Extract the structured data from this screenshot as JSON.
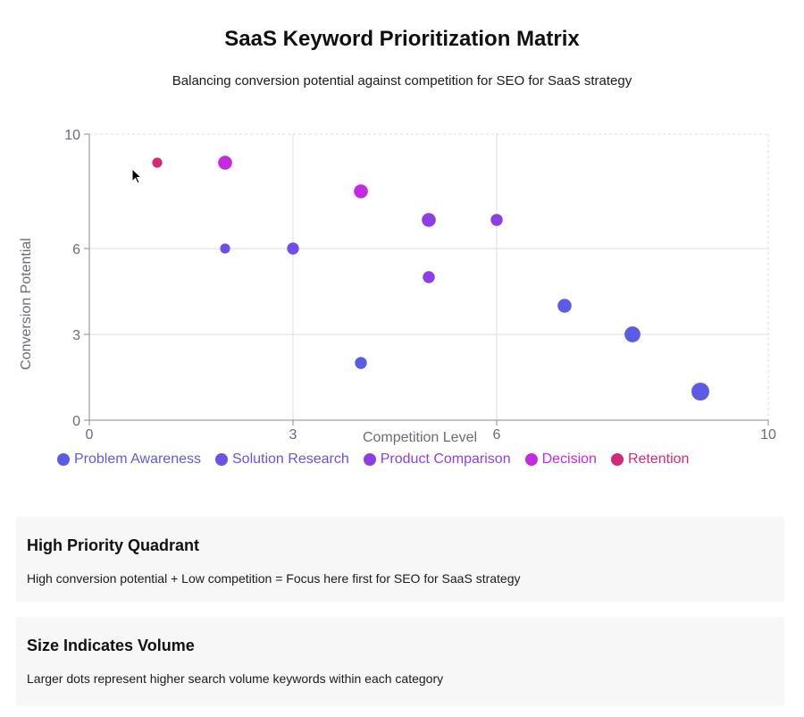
{
  "title": "SaaS Keyword Prioritization Matrix",
  "subtitle": "Balancing conversion potential against competition for SEO for SaaS strategy",
  "chart_data": {
    "type": "scatter",
    "xlabel": "Competition Level",
    "ylabel": "Conversion Potential",
    "xlim": [
      0,
      10
    ],
    "ylim": [
      0,
      10
    ],
    "x_ticks": [
      0,
      3,
      6,
      10
    ],
    "y_ticks": [
      0,
      3,
      6,
      10
    ],
    "grid": true,
    "legend_position": "bottom",
    "series": [
      {
        "name": "Problem Awareness",
        "color": "#5b5ce6",
        "points": [
          {
            "x": 4,
            "y": 2,
            "volume": 2
          },
          {
            "x": 7,
            "y": 4,
            "volume": 3
          },
          {
            "x": 8,
            "y": 3,
            "volume": 4
          },
          {
            "x": 9,
            "y": 1,
            "volume": 5
          }
        ]
      },
      {
        "name": "Solution Research",
        "color": "#6e4fe8",
        "points": [
          {
            "x": 2,
            "y": 6,
            "volume": 1
          },
          {
            "x": 3,
            "y": 6,
            "volume": 2
          }
        ]
      },
      {
        "name": "Product Comparison",
        "color": "#8f3ee6",
        "points": [
          {
            "x": 5,
            "y": 7,
            "volume": 3
          },
          {
            "x": 5,
            "y": 5,
            "volume": 2
          },
          {
            "x": 6,
            "y": 7,
            "volume": 2
          }
        ]
      },
      {
        "name": "Decision",
        "color": "#c42ae0",
        "points": [
          {
            "x": 2,
            "y": 9,
            "volume": 3
          },
          {
            "x": 4,
            "y": 8,
            "volume": 3
          }
        ]
      },
      {
        "name": "Retention",
        "color": "#d4287a",
        "points": [
          {
            "x": 1,
            "y": 9,
            "volume": 1
          }
        ]
      }
    ]
  },
  "cards": [
    {
      "title": "High Priority Quadrant",
      "text": "High conversion potential + Low competition = Focus here first for SEO for SaaS strategy"
    },
    {
      "title": "Size Indicates Volume",
      "text": "Larger dots represent higher search volume keywords within each category"
    }
  ]
}
